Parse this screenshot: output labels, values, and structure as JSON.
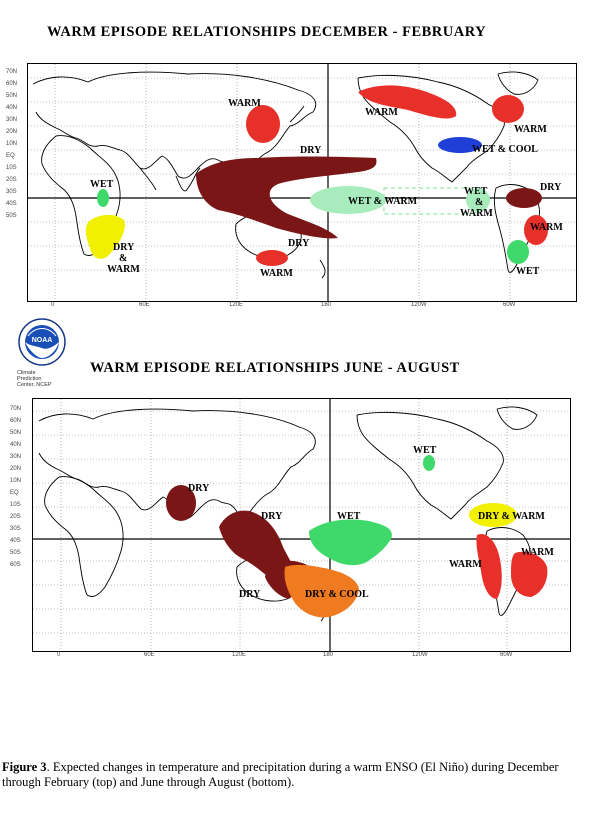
{
  "top_map": {
    "title": "WARM EPISODE RELATIONSHIPS     DECEMBER - FEBRUARY",
    "lat_labels": [
      "70N",
      "60N",
      "50N",
      "40N",
      "30N",
      "20N",
      "10N",
      "EQ",
      "10S",
      "20S",
      "30S",
      "40S",
      "50S"
    ],
    "lon_labels": [
      "0",
      "60E",
      "120E",
      "180",
      "120W",
      "60W"
    ],
    "regions": [
      {
        "label": "WARM",
        "color": "#e8302a"
      },
      {
        "label": "WARM",
        "color": "#e8302a"
      },
      {
        "label": "DRY",
        "color": "#7a1616"
      },
      {
        "label": "WET & COOL",
        "color": "#1f3fd6"
      },
      {
        "label": "WARM",
        "color": "#e8302a"
      },
      {
        "label": "DRY",
        "color": "#7a1616"
      },
      {
        "label": "WET",
        "color": "#3fd86a"
      },
      {
        "label": "WET & WARM",
        "color": "#a8ecbd"
      },
      {
        "label": "WET & WARM",
        "color": "#a8ecbd"
      },
      {
        "label": "WARM",
        "color": "#e8302a"
      },
      {
        "label": "DRY & WARM",
        "color": "#f0f000"
      },
      {
        "label": "DRY",
        "color": "#7a1616"
      },
      {
        "label": "WARM",
        "color": "#e8302a"
      },
      {
        "label": "WET",
        "color": "#3fd86a"
      }
    ]
  },
  "bottom_map": {
    "title": "WARM EPISODE RELATIONSHIPS    JUNE - AUGUST",
    "lat_labels": [
      "70N",
      "60N",
      "50N",
      "40N",
      "30N",
      "20N",
      "10N",
      "EQ",
      "10S",
      "20S",
      "30S",
      "40S",
      "50S",
      "60S"
    ],
    "lon_labels": [
      "0",
      "60E",
      "120E",
      "180",
      "120W",
      "60W"
    ],
    "regions": [
      {
        "label": "DRY",
        "color": "#7a1616"
      },
      {
        "label": "DRY",
        "color": "#7a1616"
      },
      {
        "label": "DRY",
        "color": "#7a1616"
      },
      {
        "label": "DRY & COOL",
        "color": "#f07a20"
      },
      {
        "label": "WET",
        "color": "#3fd86a"
      },
      {
        "label": "WET",
        "color": "#3fd86a"
      },
      {
        "label": "DRY & WARM",
        "color": "#f0f000"
      },
      {
        "label": "WARM",
        "color": "#e8302a"
      },
      {
        "label": "WARM",
        "color": "#e8302a"
      }
    ]
  },
  "logo": {
    "text": "NOAA",
    "lines": [
      "Climate",
      "Prediction",
      "Center, NCEP"
    ]
  },
  "caption": {
    "figure_label": "Figure 3",
    "text": ". Expected changes in temperature and precipitation during a warm ENSO (El Niño) during December through February (top) and June through August (bottom)."
  }
}
